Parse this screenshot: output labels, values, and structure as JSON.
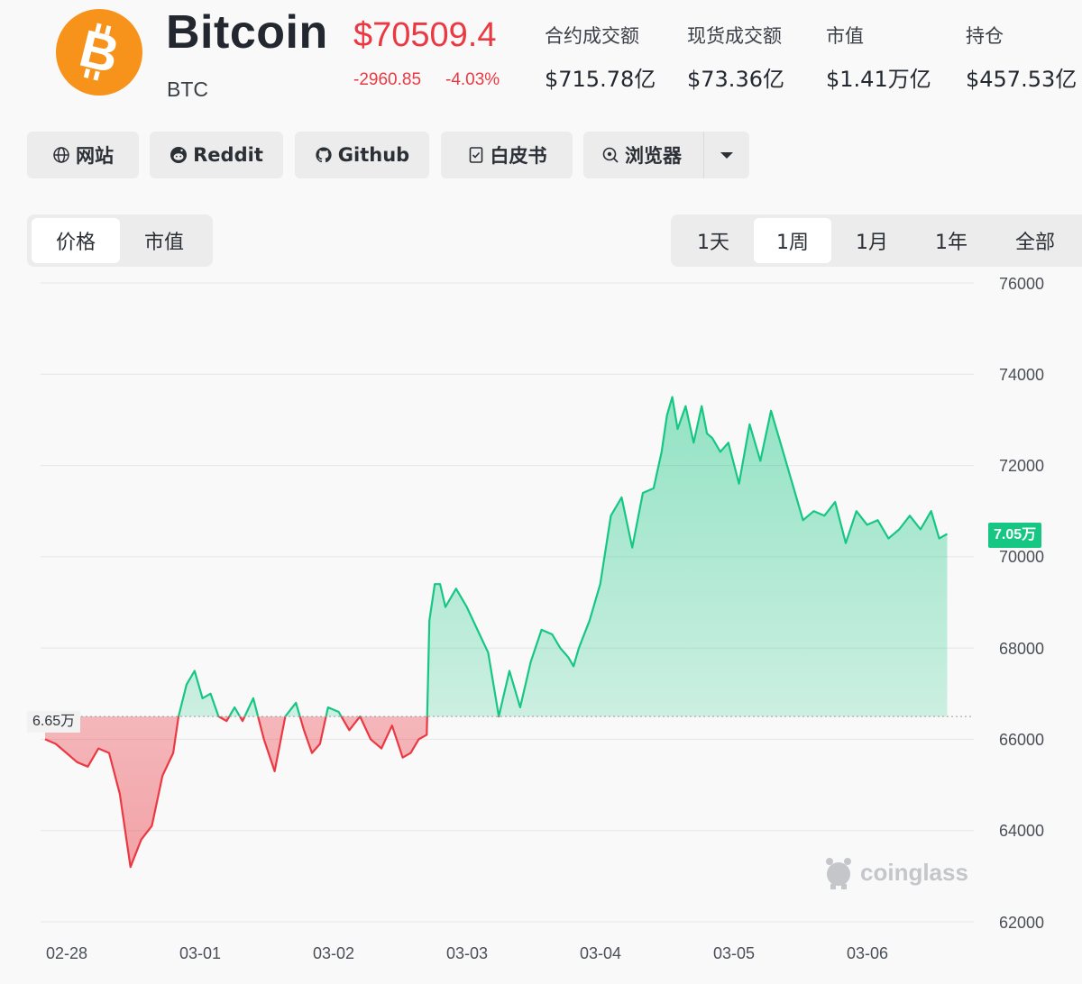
{
  "coin": {
    "name": "Bitcoin",
    "symbol": "BTC",
    "price": "$70509.4",
    "change_abs": "-2960.85",
    "change_pct": "-4.03%",
    "logo_color": "#f7931a"
  },
  "stats": [
    {
      "label": "合约成交额",
      "value": "$715.78亿"
    },
    {
      "label": "现货成交额",
      "value": "$73.36亿"
    },
    {
      "label": "市值",
      "value": "$1.41万亿"
    },
    {
      "label": "持仓",
      "value": "$457.53亿"
    }
  ],
  "links": [
    {
      "label": "网站",
      "icon": "globe-icon"
    },
    {
      "label": "Reddit",
      "icon": "reddit-icon"
    },
    {
      "label": "Github",
      "icon": "github-icon"
    },
    {
      "label": "白皮书",
      "icon": "document-icon"
    },
    {
      "label": "浏览器",
      "icon": "explorer-icon"
    }
  ],
  "metric_tabs": {
    "items": [
      "价格",
      "市值"
    ],
    "active": "价格"
  },
  "range_tabs": {
    "items": [
      "1天",
      "1周",
      "1月",
      "1年",
      "全部"
    ],
    "active": "1周"
  },
  "colors": {
    "up": "#16c784",
    "down": "#ea3943",
    "accent": "#16c784"
  },
  "chart_data": {
    "type": "area",
    "baseline": 66500,
    "baseline_label": "6.65万",
    "last_value_label": "7.05万",
    "ylim": [
      62000,
      76000
    ],
    "y_ticks": [
      "76000",
      "74000",
      "72000",
      "70000",
      "68000",
      "66000",
      "64000",
      "62000"
    ],
    "x_ticks": [
      "02-28",
      "03-01",
      "03-02",
      "03-03",
      "03-04",
      "03-05",
      "03-06"
    ],
    "grid": true,
    "watermark": "coinglass",
    "x": [
      0,
      0.08,
      0.16,
      0.24,
      0.32,
      0.4,
      0.48,
      0.56,
      0.64,
      0.72,
      0.8,
      0.88,
      0.96,
      1.0,
      1.06,
      1.12,
      1.18,
      1.24,
      1.3,
      1.36,
      1.42,
      1.48,
      1.56,
      1.64,
      1.72,
      1.8,
      1.88,
      1.94,
      2.0,
      2.06,
      2.12,
      2.2,
      2.28,
      2.36,
      2.44,
      2.52,
      2.6,
      2.68,
      2.74,
      2.8,
      2.86,
      2.88,
      2.92,
      2.96,
      3.0,
      3.08,
      3.16,
      3.24,
      3.32,
      3.4,
      3.48,
      3.56,
      3.64,
      3.72,
      3.8,
      3.86,
      3.92,
      3.96,
      4.0,
      4.08,
      4.16,
      4.24,
      4.32,
      4.4,
      4.48,
      4.56,
      4.62,
      4.66,
      4.7,
      4.74,
      4.8,
      4.86,
      4.92,
      4.96,
      5.0,
      5.06,
      5.12,
      5.2,
      5.28,
      5.36,
      5.44,
      5.52,
      5.6,
      5.68,
      5.76,
      5.84,
      5.92,
      6.0,
      6.08,
      6.16,
      6.24,
      6.32,
      6.4,
      6.48,
      6.56,
      6.64,
      6.7,
      6.76
    ],
    "y": [
      66000,
      65900,
      65700,
      65500,
      65400,
      65800,
      65700,
      64800,
      63200,
      63800,
      64100,
      65200,
      65700,
      66500,
      67200,
      67500,
      66900,
      67000,
      66500,
      66400,
      66700,
      66400,
      66900,
      66000,
      65300,
      66500,
      66800,
      66200,
      65700,
      65900,
      66700,
      66600,
      66200,
      66500,
      66000,
      65800,
      66300,
      65600,
      65700,
      66000,
      66100,
      68600,
      69400,
      69400,
      68900,
      69300,
      68900,
      68400,
      67900,
      66500,
      67500,
      66700,
      67700,
      68400,
      68300,
      68000,
      67800,
      67600,
      68000,
      68600,
      69400,
      70900,
      71300,
      70200,
      71400,
      71500,
      72300,
      73100,
      73500,
      72800,
      73300,
      72500,
      73300,
      72700,
      72600,
      72300,
      72500,
      71600,
      72900,
      72100,
      73200,
      72400,
      71600,
      70800,
      71000,
      70900,
      71200,
      70300,
      71000,
      70700,
      70800,
      70400,
      70600,
      70900,
      70600,
      71000,
      70400,
      70500
    ]
  }
}
